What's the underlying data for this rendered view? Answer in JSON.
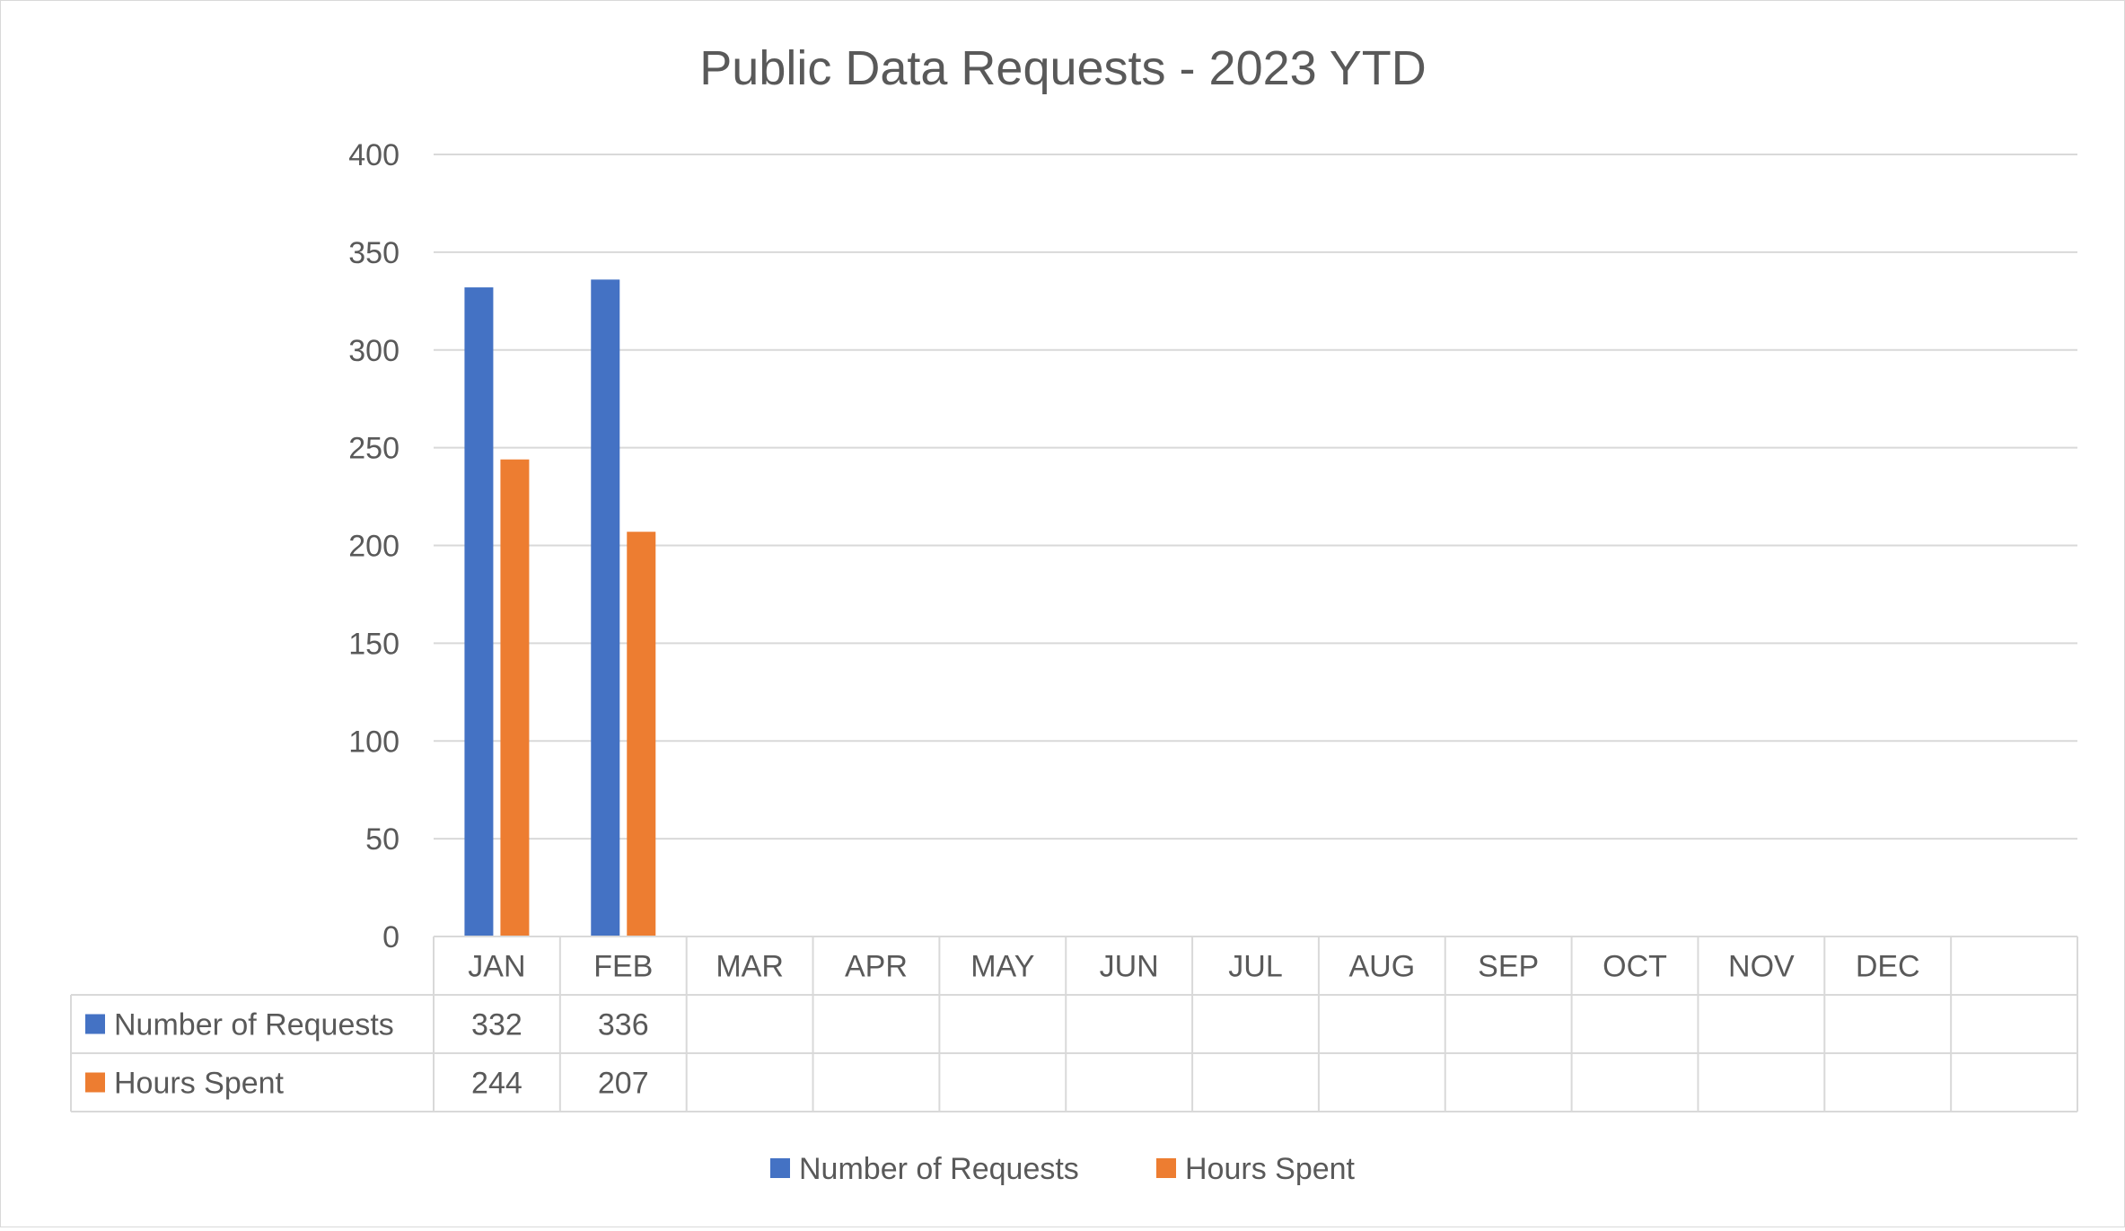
{
  "chart_data": {
    "type": "bar",
    "title": "Public Data Requests - 2023 YTD",
    "xlabel": "",
    "ylabel": "",
    "ylim": [
      0,
      400
    ],
    "yticks": [
      0,
      50,
      100,
      150,
      200,
      250,
      300,
      350,
      400
    ],
    "grid": true,
    "legend": "bottom",
    "data_table": true,
    "categories": [
      "JAN",
      "FEB",
      "MAR",
      "APR",
      "MAY",
      "JUN",
      "JUL",
      "AUG",
      "SEP",
      "OCT",
      "NOV",
      "DEC"
    ],
    "series": [
      {
        "name": "Number of Requests",
        "color": "#4472c4",
        "values": [
          332,
          336,
          null,
          null,
          null,
          null,
          null,
          null,
          null,
          null,
          null,
          null
        ]
      },
      {
        "name": "Hours Spent",
        "color": "#ed7d31",
        "values": [
          244,
          207,
          null,
          null,
          null,
          null,
          null,
          null,
          null,
          null,
          null,
          null
        ]
      }
    ]
  }
}
